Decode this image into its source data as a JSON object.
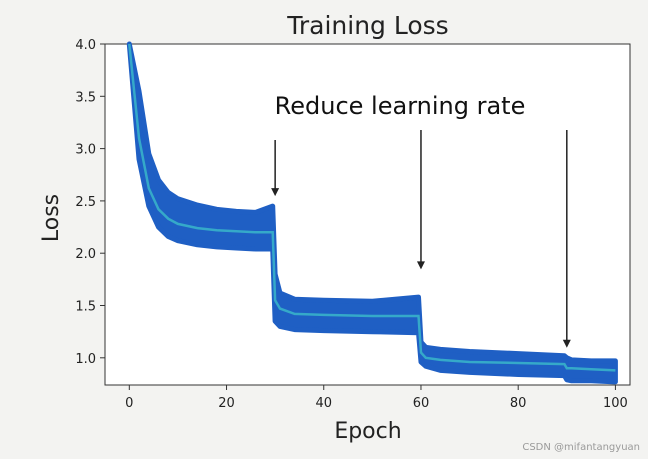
{
  "chart_data": {
    "type": "line",
    "title": "Training Loss",
    "xlabel": "Epoch",
    "ylabel": "Loss",
    "xlim": [
      -5,
      103
    ],
    "ylim": [
      0.74,
      4.0
    ],
    "x_ticks": [
      0,
      20,
      40,
      60,
      80,
      100
    ],
    "x_tick_labels": [
      "0",
      "20",
      "40",
      "60",
      "80",
      "100"
    ],
    "y_ticks": [
      1.0,
      1.5,
      2.0,
      2.5,
      3.0,
      3.5,
      4.0
    ],
    "y_tick_labels": [
      "1.0",
      "1.5",
      "2.0",
      "2.5",
      "3.0",
      "3.5",
      "4.0"
    ],
    "grid": false,
    "annotation": {
      "text": "Reduce learning rate",
      "arrow_epochs": [
        30,
        60,
        90
      ]
    },
    "series": [
      {
        "color": "#1f5fc4",
        "style": "band",
        "x": [
          0,
          2,
          4,
          6,
          8,
          10,
          14,
          18,
          22,
          26,
          29.5,
          30,
          31,
          34,
          40,
          50,
          59.5,
          60,
          61,
          64,
          70,
          80,
          89.5,
          90,
          91,
          95,
          100
        ],
        "lower": [
          4.0,
          2.9,
          2.45,
          2.25,
          2.16,
          2.12,
          2.08,
          2.06,
          2.05,
          2.04,
          2.04,
          1.35,
          1.3,
          1.27,
          1.26,
          1.25,
          1.24,
          0.96,
          0.92,
          0.88,
          0.86,
          0.84,
          0.83,
          0.79,
          0.78,
          0.78,
          0.77
        ],
        "upper": [
          4.0,
          3.55,
          2.95,
          2.7,
          2.58,
          2.52,
          2.46,
          2.42,
          2.4,
          2.39,
          2.45,
          1.8,
          1.62,
          1.56,
          1.55,
          1.54,
          1.58,
          1.15,
          1.1,
          1.08,
          1.06,
          1.04,
          1.02,
          1.0,
          0.98,
          0.97,
          0.97
        ]
      },
      {
        "color": "#35a9c9",
        "style": "line",
        "x": [
          0,
          2,
          4,
          6,
          8,
          10,
          14,
          18,
          22,
          26,
          29.5,
          30,
          31,
          34,
          40,
          50,
          59.5,
          60,
          61,
          64,
          70,
          80,
          89.5,
          90,
          91,
          95,
          100
        ],
        "values": [
          4.0,
          3.1,
          2.62,
          2.42,
          2.33,
          2.28,
          2.24,
          2.22,
          2.21,
          2.2,
          2.2,
          1.55,
          1.47,
          1.42,
          1.41,
          1.4,
          1.4,
          1.05,
          1.0,
          0.98,
          0.96,
          0.95,
          0.94,
          0.9,
          0.9,
          0.89,
          0.88
        ]
      }
    ]
  },
  "watermark": "CSDN @mifantangyuan"
}
